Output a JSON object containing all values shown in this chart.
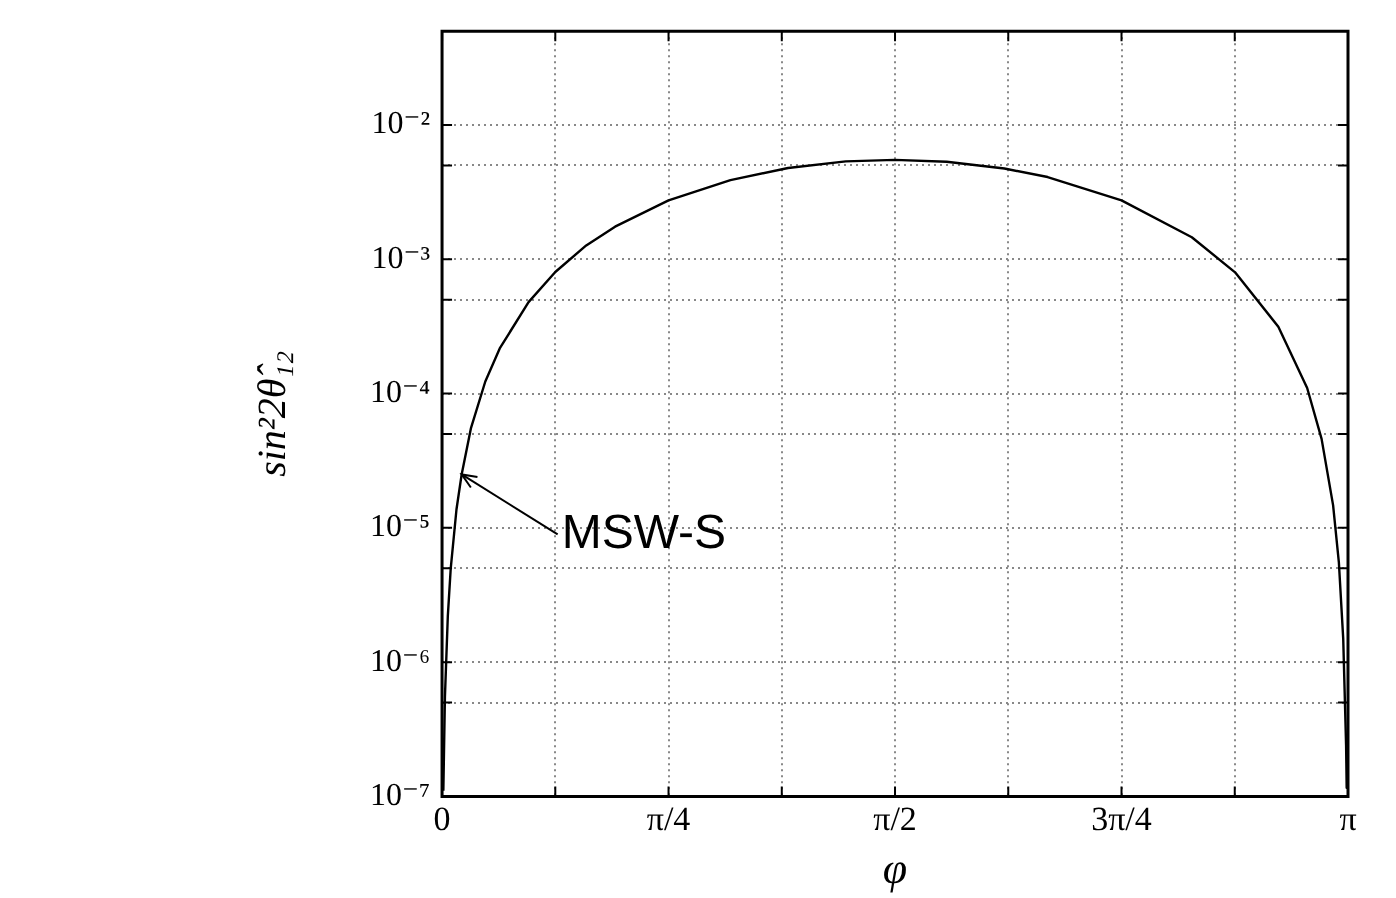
{
  "chart_data": {
    "type": "line",
    "xlabel": "φ",
    "ylabel": "sin²2θ̂₁₂",
    "log": "y",
    "grid": true,
    "legend": false,
    "marker": "none",
    "line_style": "solid",
    "xlim": [
      0,
      3.1416
    ],
    "ylim": [
      1e-07,
      0.05
    ],
    "xticks": [
      0,
      {
        "value": 0.3927,
        "label": null
      },
      {
        "value": 0.7854,
        "label": "π/4"
      },
      {
        "value": 1.1781,
        "label": null
      },
      {
        "value": 1.5708,
        "label": "π/2"
      },
      {
        "value": 1.9635,
        "label": null
      },
      {
        "value": 2.3562,
        "label": "3π/4"
      },
      {
        "value": 2.7489,
        "label": null
      },
      {
        "value": 3.1416,
        "label": "π"
      }
    ],
    "yticks": [
      {
        "value": 1e-07,
        "label": "10⁻⁷"
      },
      {
        "value": 5e-07,
        "label": null
      },
      {
        "value": 1e-06,
        "label": "10⁻⁶"
      },
      {
        "value": 5e-06,
        "label": null
      },
      {
        "value": 1e-05,
        "label": "10⁻⁵"
      },
      {
        "value": 5e-05,
        "label": null
      },
      {
        "value": 0.0001,
        "label": "10⁻⁴"
      },
      {
        "value": 0.0005,
        "label": null
      },
      {
        "value": 0.001,
        "label": "10⁻³"
      },
      {
        "value": 0.005,
        "label": null
      },
      {
        "value": 0.01,
        "label": "10⁻²"
      }
    ],
    "annotations": [
      {
        "text": "MSW-S",
        "x": 0.068,
        "y": 2.5e-05
      }
    ],
    "series": [
      {
        "color": "#000000",
        "x": [
          0.0045,
          0.01,
          0.02,
          0.03,
          0.05,
          0.068,
          0.1,
          0.15,
          0.2,
          0.3,
          0.3927,
          0.5,
          0.6,
          0.7854,
          1.0,
          1.2,
          1.4,
          1.5708,
          1.75,
          1.95,
          2.1,
          2.3562,
          2.6,
          2.75,
          2.9,
          3.0,
          3.05,
          3.09,
          3.11,
          3.125,
          3.135,
          3.137
        ],
        "values": [
          1.1e-07,
          5.5e-07,
          2.2e-06,
          4.95e-06,
          1.37e-05,
          2.5e-05,
          5.5e-05,
          0.000123,
          0.000217,
          0.00048,
          0.000805,
          0.00127,
          0.00175,
          0.00275,
          0.00389,
          0.00479,
          0.00536,
          0.0055,
          0.00533,
          0.00475,
          0.0041,
          0.00275,
          0.00146,
          0.0008,
          0.000315,
          0.00011,
          4.6e-05,
          1.47e-05,
          5.5e-06,
          1.5e-06,
          2.4e-07,
          1.16e-07
        ]
      }
    ]
  }
}
